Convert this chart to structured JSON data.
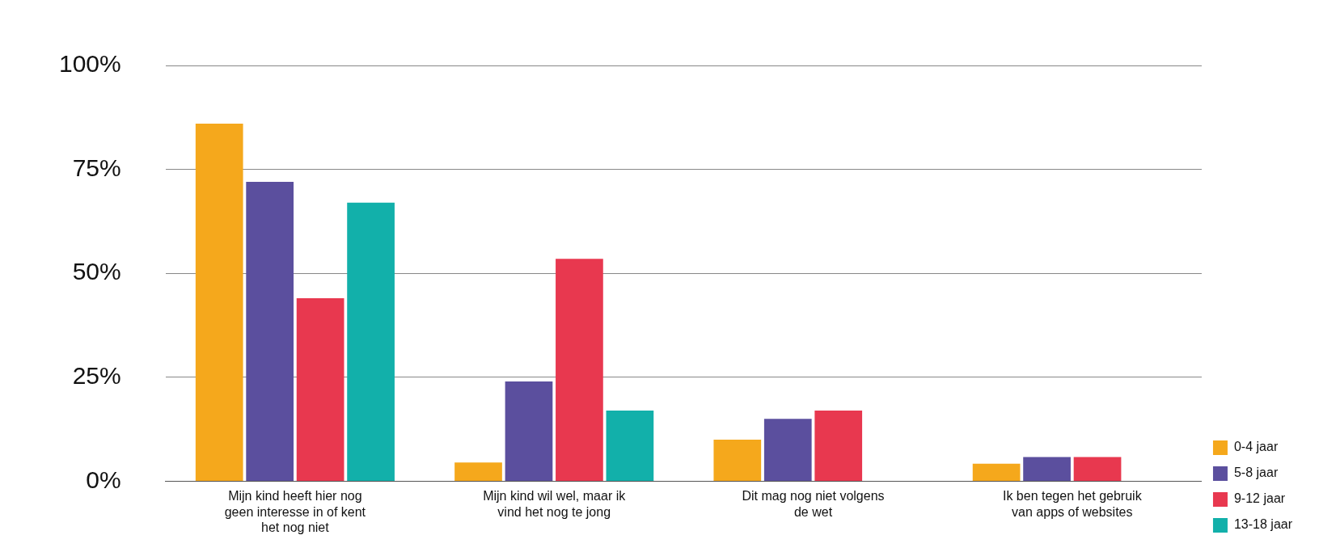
{
  "chart_data": {
    "type": "bar",
    "categories": [
      "Mijn kind heeft hier nog geen interesse in of kent het nog niet",
      "Mijn kind wil wel, maar ik vind het nog te jong",
      "Dit mag nog niet volgens de wet",
      "Ik ben tegen het gebruik van apps of websites"
    ],
    "series": [
      {
        "name": "0-4 jaar",
        "color": "#f5a81c",
        "values": [
          86,
          4.5,
          10,
          4.2
        ]
      },
      {
        "name": "5-8 jaar",
        "color": "#5b4f9e",
        "values": [
          72,
          24,
          15,
          5.8
        ]
      },
      {
        "name": "9-12 jaar",
        "color": "#e8384f",
        "values": [
          44,
          53.5,
          17,
          5.8
        ]
      },
      {
        "name": "13-18 jaar",
        "color": "#12b0aa",
        "values": [
          67,
          17,
          null,
          null
        ]
      }
    ],
    "ylim": [
      0,
      100
    ],
    "yticks": [
      {
        "value": 0,
        "label": "0%"
      },
      {
        "value": 25,
        "label": "25%"
      },
      {
        "value": 50,
        "label": "50%"
      },
      {
        "value": 75,
        "label": "75%"
      },
      {
        "value": 100,
        "label": "100%"
      }
    ],
    "grid": "y",
    "legend": "right"
  }
}
